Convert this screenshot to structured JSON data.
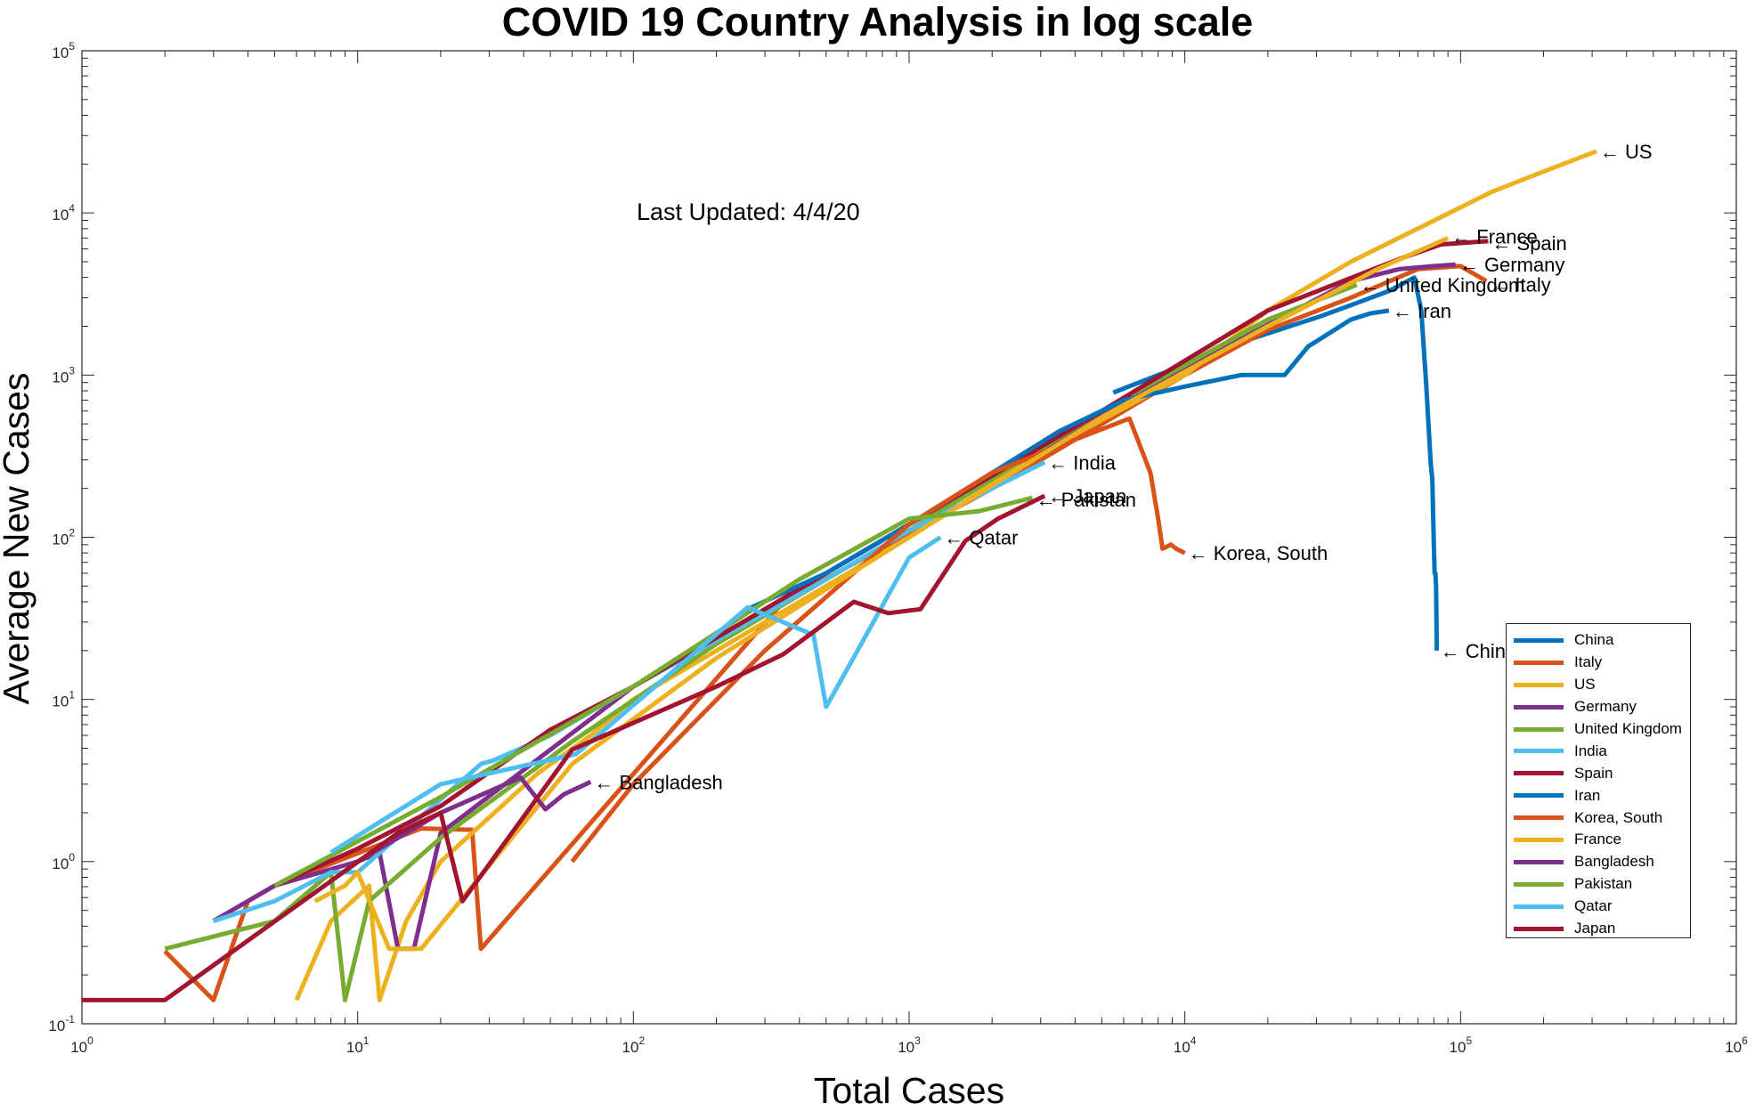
{
  "chart_data": {
    "type": "line",
    "title": "COVID 19 Country Analysis in log scale",
    "xlabel": "Total Cases",
    "ylabel": "Average New Cases",
    "xscale": "log",
    "yscale": "log",
    "xlim": [
      1,
      1000000
    ],
    "ylim": [
      0.1,
      100000
    ],
    "grid": false,
    "legend_position": "bottom-right",
    "x_ticks": [
      {
        "base": "10",
        "exp": "0"
      },
      {
        "base": "10",
        "exp": "1"
      },
      {
        "base": "10",
        "exp": "2"
      },
      {
        "base": "10",
        "exp": "3"
      },
      {
        "base": "10",
        "exp": "4"
      },
      {
        "base": "10",
        "exp": "5"
      },
      {
        "base": "10",
        "exp": "6"
      }
    ],
    "y_ticks": [
      {
        "base": "10",
        "exp": "-1"
      },
      {
        "base": "10",
        "exp": "0"
      },
      {
        "base": "10",
        "exp": "1"
      },
      {
        "base": "10",
        "exp": "2"
      },
      {
        "base": "10",
        "exp": "3"
      },
      {
        "base": "10",
        "exp": "4"
      },
      {
        "base": "10",
        "exp": "5"
      }
    ],
    "annotation": "Last Updated: 4/4/20",
    "series": [
      {
        "name": "China",
        "color": "#0072BD",
        "label": "China",
        "x": [
          5500,
          8000,
          12000,
          17000,
          24000,
          31000,
          40000,
          55000,
          68000,
          72000,
          75000,
          78000,
          79000,
          80000,
          80500,
          81000,
          81500,
          81800,
          82000
        ],
        "y": [
          780,
          1000,
          1300,
          1650,
          2000,
          2300,
          2700,
          3300,
          4000,
          2500,
          900,
          280,
          230,
          90,
          60,
          60,
          50,
          30,
          20
        ]
      },
      {
        "name": "Italy",
        "color": "#D95319",
        "label": "Italy",
        "x": [
          2,
          3,
          4,
          5,
          17,
          26,
          28,
          350,
          2000,
          10000,
          20000,
          40000,
          70000,
          100000,
          124000
        ],
        "y": [
          0.28,
          0.14,
          0.57,
          0.71,
          1.6,
          1.57,
          0.29,
          40,
          200,
          1000,
          1900,
          3000,
          4500,
          4700,
          3800
        ]
      },
      {
        "name": "US",
        "color": "#EDB120",
        "label": "US",
        "x": [
          6,
          8,
          11,
          12,
          15,
          20,
          45,
          70,
          100,
          300,
          1000,
          3000,
          10000,
          20000,
          40000,
          70000,
          130000,
          200000,
          311000
        ],
        "y": [
          0.14,
          0.43,
          0.71,
          0.14,
          0.43,
          1.0,
          3.5,
          6.0,
          10,
          30,
          100,
          330,
          1000,
          2500,
          5000,
          8000,
          13500,
          18000,
          24000
        ]
      },
      {
        "name": "Germany",
        "color": "#7E2F8E",
        "label": "Germany",
        "x": [
          3,
          5,
          10,
          12,
          14,
          16,
          20,
          100,
          1000,
          10000,
          40000,
          60000,
          80000,
          96000
        ],
        "y": [
          0.43,
          0.71,
          1.0,
          1.14,
          0.29,
          0.29,
          1.5,
          12,
          120,
          1100,
          3800,
          4500,
          4700,
          4800
        ]
      },
      {
        "name": "United Kingdom",
        "color": "#77AC30",
        "label": "United Kingdom",
        "x": [
          2,
          5,
          8,
          9,
          11,
          20,
          60,
          200,
          1000,
          5000,
          20000,
          42000
        ],
        "y": [
          0.29,
          0.43,
          0.86,
          0.14,
          0.57,
          1.4,
          5.5,
          22,
          110,
          600,
          2200,
          3600
        ]
      },
      {
        "name": "India",
        "color": "#4DBEEE",
        "label": "India",
        "x": [
          3,
          5,
          8,
          10,
          28,
          31,
          50,
          100,
          500,
          1000,
          2000,
          3100
        ],
        "y": [
          0.43,
          0.57,
          0.86,
          0.86,
          4.0,
          4.2,
          6.0,
          12,
          55,
          110,
          200,
          290
        ]
      },
      {
        "name": "Spain",
        "color": "#A2142F",
        "label": "Spain",
        "x": [
          5,
          10,
          20,
          50,
          100,
          500,
          1000,
          5000,
          20000,
          60000,
          85000,
          126000
        ],
        "y": [
          0.71,
          1.2,
          2.2,
          6.5,
          12,
          60,
          120,
          600,
          2500,
          5200,
          6400,
          6700
        ]
      },
      {
        "name": "Iran",
        "color": "#0072BD",
        "label": "Iran",
        "x": [
          250,
          500,
          1000,
          3500,
          6000,
          10000,
          16000,
          23000,
          28000,
          40000,
          47000,
          55000
        ],
        "y": [
          35,
          60,
          120,
          450,
          700,
          850,
          1000,
          1000,
          1500,
          2200,
          2400,
          2500
        ]
      },
      {
        "name": "Korea, South",
        "color": "#D95319",
        "label": "Korea, South",
        "x": [
          60,
          100,
          300,
          1000,
          2000,
          4000,
          6300,
          7500,
          8000,
          8300,
          8900,
          9300,
          10000
        ],
        "y": [
          1.0,
          3.0,
          20,
          120,
          250,
          400,
          540,
          250,
          130,
          85,
          90,
          85,
          80
        ]
      },
      {
        "name": "France",
        "color": "#EDB120",
        "label": "France",
        "x": [
          7,
          9,
          10,
          13,
          17,
          60,
          200,
          1000,
          5000,
          20000,
          50000,
          90000
        ],
        "y": [
          0.57,
          0.71,
          0.86,
          0.29,
          0.29,
          4.0,
          18,
          100,
          550,
          2000,
          4500,
          7000
        ]
      },
      {
        "name": "Bangladesh",
        "color": "#7E2F8E",
        "label": "Bangladesh",
        "x": [
          10,
          20,
          39,
          48,
          56,
          70
        ],
        "y": [
          1.0,
          2.0,
          3.3,
          2.1,
          2.6,
          3.1
        ]
      },
      {
        "name": "Pakistan",
        "color": "#77AC30",
        "label": "Pakistan",
        "x": [
          5,
          20,
          100,
          400,
          1000,
          1800,
          2800
        ],
        "y": [
          0.71,
          2.5,
          12,
          55,
          130,
          145,
          175
        ]
      },
      {
        "name": "Qatar",
        "color": "#4DBEEE",
        "label": "Qatar",
        "x": [
          8,
          20,
          62,
          260,
          450,
          500,
          650,
          1000,
          1300
        ],
        "y": [
          1.14,
          3.0,
          4.6,
          37,
          25,
          9.0,
          20,
          75,
          100
        ]
      },
      {
        "name": "Japan",
        "color": "#A2142F",
        "label": "Japan",
        "x": [
          1,
          2,
          14,
          20,
          24,
          60,
          200,
          350,
          630,
          840,
          1100,
          1600,
          2100,
          3100
        ],
        "y": [
          0.14,
          0.14,
          1.5,
          2.0,
          0.57,
          4.9,
          12,
          19,
          40,
          34,
          36,
          95,
          130,
          180
        ]
      }
    ]
  }
}
